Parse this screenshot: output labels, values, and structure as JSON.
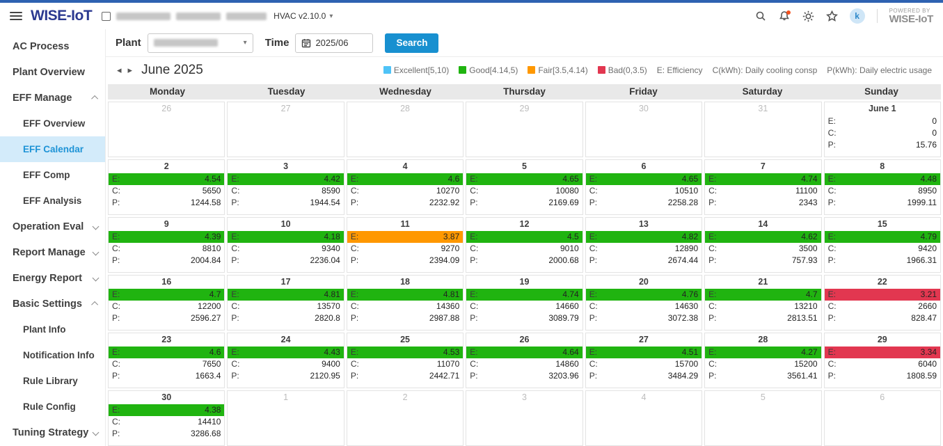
{
  "header": {
    "logo": "WISE-IoT",
    "app_version": "HVAC v2.10.0",
    "dropdown_caret": "▾",
    "avatar_initial": "k",
    "powered_by_line1": "POWERED BY",
    "powered_by_line2": "WISE-IoT"
  },
  "sidebar": {
    "items": [
      {
        "label": "AC Process"
      },
      {
        "label": "Plant Overview"
      },
      {
        "label": "EFF Manage",
        "expanded": true,
        "children": [
          {
            "label": "EFF Overview"
          },
          {
            "label": "EFF Calendar",
            "active": true
          },
          {
            "label": "EFF Comp"
          },
          {
            "label": "EFF Analysis"
          }
        ]
      },
      {
        "label": "Operation Eval",
        "expanded": false
      },
      {
        "label": "Report Manage",
        "expanded": false
      },
      {
        "label": "Energy Report",
        "expanded": false
      },
      {
        "label": "Basic Settings",
        "expanded": true,
        "children": [
          {
            "label": "Plant Info"
          },
          {
            "label": "Notification Info"
          },
          {
            "label": "Rule Library"
          },
          {
            "label": "Rule Config"
          }
        ]
      },
      {
        "label": "Tuning Strategy",
        "expanded": false
      }
    ]
  },
  "filter": {
    "plant_label": "Plant",
    "plant_value_redacted": true,
    "time_label": "Time",
    "time_value": "2025/06",
    "search_label": "Search"
  },
  "calendar_nav": {
    "prev": "◂",
    "next": "▸",
    "title": "June 2025"
  },
  "legend": {
    "items": [
      {
        "label": "Excellent[5,10)",
        "status": "excellent"
      },
      {
        "label": "Good[4.14,5)",
        "status": "good"
      },
      {
        "label": "Fair[3.5,4.14)",
        "status": "fair"
      },
      {
        "label": "Bad(0,3.5)",
        "status": "bad"
      }
    ],
    "notes": [
      "E: Efficiency",
      "C(kWh): Daily cooling consp",
      "P(kWh): Daily electric usage"
    ]
  },
  "colors": {
    "accent": "#1890d0",
    "excellent": "#4fc3f7",
    "good": "#20b410",
    "fair": "#ff9800",
    "bad": "#e23750"
  },
  "metric_labels": {
    "e": "E:",
    "c": "C:",
    "p": "P:"
  },
  "calendar": {
    "day_headers": [
      "Monday",
      "Tuesday",
      "Wednesday",
      "Thursday",
      "Friday",
      "Saturday",
      "Sunday"
    ],
    "weeks": [
      [
        {
          "date": "26",
          "other": true
        },
        {
          "date": "27",
          "other": true
        },
        {
          "date": "28",
          "other": true
        },
        {
          "date": "29",
          "other": true
        },
        {
          "date": "30",
          "other": true
        },
        {
          "date": "31",
          "other": true
        },
        {
          "date": "June 1",
          "e": "0",
          "c": "0",
          "p": "15.76",
          "status": "none"
        }
      ],
      [
        {
          "date": "2",
          "e": "4.54",
          "c": "5650",
          "p": "1244.58",
          "status": "good"
        },
        {
          "date": "3",
          "e": "4.42",
          "c": "8590",
          "p": "1944.54",
          "status": "good"
        },
        {
          "date": "4",
          "e": "4.6",
          "c": "10270",
          "p": "2232.92",
          "status": "good"
        },
        {
          "date": "5",
          "e": "4.65",
          "c": "10080",
          "p": "2169.69",
          "status": "good"
        },
        {
          "date": "6",
          "e": "4.65",
          "c": "10510",
          "p": "2258.28",
          "status": "good"
        },
        {
          "date": "7",
          "e": "4.74",
          "c": "11100",
          "p": "2343",
          "status": "good"
        },
        {
          "date": "8",
          "e": "4.48",
          "c": "8950",
          "p": "1999.11",
          "status": "good"
        }
      ],
      [
        {
          "date": "9",
          "e": "4.39",
          "c": "8810",
          "p": "2004.84",
          "status": "good"
        },
        {
          "date": "10",
          "e": "4.18",
          "c": "9340",
          "p": "2236.04",
          "status": "good"
        },
        {
          "date": "11",
          "e": "3.87",
          "c": "9270",
          "p": "2394.09",
          "status": "fair"
        },
        {
          "date": "12",
          "e": "4.5",
          "c": "9010",
          "p": "2000.68",
          "status": "good"
        },
        {
          "date": "13",
          "e": "4.82",
          "c": "12890",
          "p": "2674.44",
          "status": "good"
        },
        {
          "date": "14",
          "e": "4.62",
          "c": "3500",
          "p": "757.93",
          "status": "good"
        },
        {
          "date": "15",
          "e": "4.79",
          "c": "9420",
          "p": "1966.31",
          "status": "good"
        }
      ],
      [
        {
          "date": "16",
          "e": "4.7",
          "c": "12200",
          "p": "2596.27",
          "status": "good"
        },
        {
          "date": "17",
          "e": "4.81",
          "c": "13570",
          "p": "2820.8",
          "status": "good"
        },
        {
          "date": "18",
          "e": "4.81",
          "c": "14360",
          "p": "2987.88",
          "status": "good"
        },
        {
          "date": "19",
          "e": "4.74",
          "c": "14660",
          "p": "3089.79",
          "status": "good"
        },
        {
          "date": "20",
          "e": "4.76",
          "c": "14630",
          "p": "3072.38",
          "status": "good"
        },
        {
          "date": "21",
          "e": "4.7",
          "c": "13210",
          "p": "2813.51",
          "status": "good"
        },
        {
          "date": "22",
          "e": "3.21",
          "c": "2660",
          "p": "828.47",
          "status": "bad"
        }
      ],
      [
        {
          "date": "23",
          "e": "4.6",
          "c": "7650",
          "p": "1663.4",
          "status": "good"
        },
        {
          "date": "24",
          "e": "4.43",
          "c": "9400",
          "p": "2120.95",
          "status": "good"
        },
        {
          "date": "25",
          "e": "4.53",
          "c": "11070",
          "p": "2442.71",
          "status": "good"
        },
        {
          "date": "26",
          "e": "4.64",
          "c": "14860",
          "p": "3203.96",
          "status": "good"
        },
        {
          "date": "27",
          "e": "4.51",
          "c": "15700",
          "p": "3484.29",
          "status": "good"
        },
        {
          "date": "28",
          "e": "4.27",
          "c": "15200",
          "p": "3561.41",
          "status": "good"
        },
        {
          "date": "29",
          "e": "3.34",
          "c": "6040",
          "p": "1808.59",
          "status": "bad"
        }
      ],
      [
        {
          "date": "30",
          "e": "4.38",
          "c": "14410",
          "p": "3286.68",
          "status": "good"
        },
        {
          "date": "1",
          "other": true
        },
        {
          "date": "2",
          "other": true
        },
        {
          "date": "3",
          "other": true
        },
        {
          "date": "4",
          "other": true
        },
        {
          "date": "5",
          "other": true
        },
        {
          "date": "6",
          "other": true
        }
      ]
    ]
  }
}
